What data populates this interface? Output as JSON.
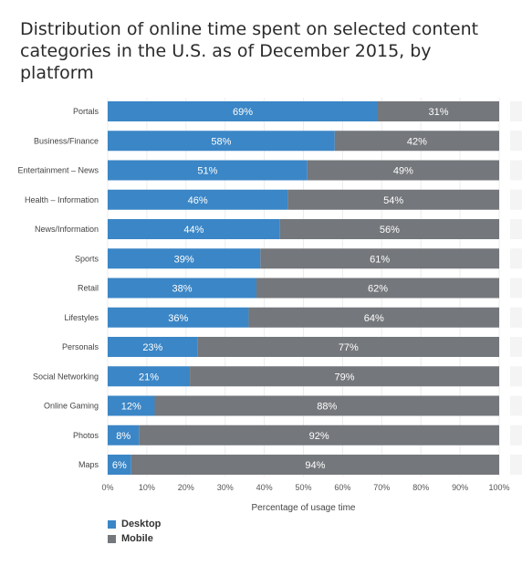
{
  "chart_data": {
    "type": "bar",
    "orientation": "horizontal",
    "stacked": true,
    "title": "Distribution of online time spent on selected content categories in the U.S. as of December 2015, by platform",
    "xlabel": "Percentage of usage time",
    "xlim": [
      0,
      100
    ],
    "x_ticks": [
      "0%",
      "10%",
      "20%",
      "30%",
      "40%",
      "50%",
      "60%",
      "70%",
      "80%",
      "90%",
      "100%"
    ],
    "grid": true,
    "legend_placement": "bottom-left",
    "value_suffix": "%",
    "categories": [
      "Portals",
      "Business/Finance",
      "Entertainment – News",
      "Health – Information",
      "News/Information",
      "Sports",
      "Retail",
      "Lifestyles",
      "Personals",
      "Social Networking",
      "Online Gaming",
      "Photos",
      "Maps"
    ],
    "series": [
      {
        "name": "Desktop",
        "color": "#3b86c6",
        "values": [
          69,
          58,
          51,
          46,
          44,
          39,
          38,
          36,
          23,
          21,
          12,
          8,
          6
        ]
      },
      {
        "name": "Mobile",
        "color": "#74777b",
        "values": [
          31,
          42,
          49,
          54,
          56,
          61,
          62,
          64,
          77,
          79,
          88,
          92,
          94
        ]
      }
    ]
  }
}
